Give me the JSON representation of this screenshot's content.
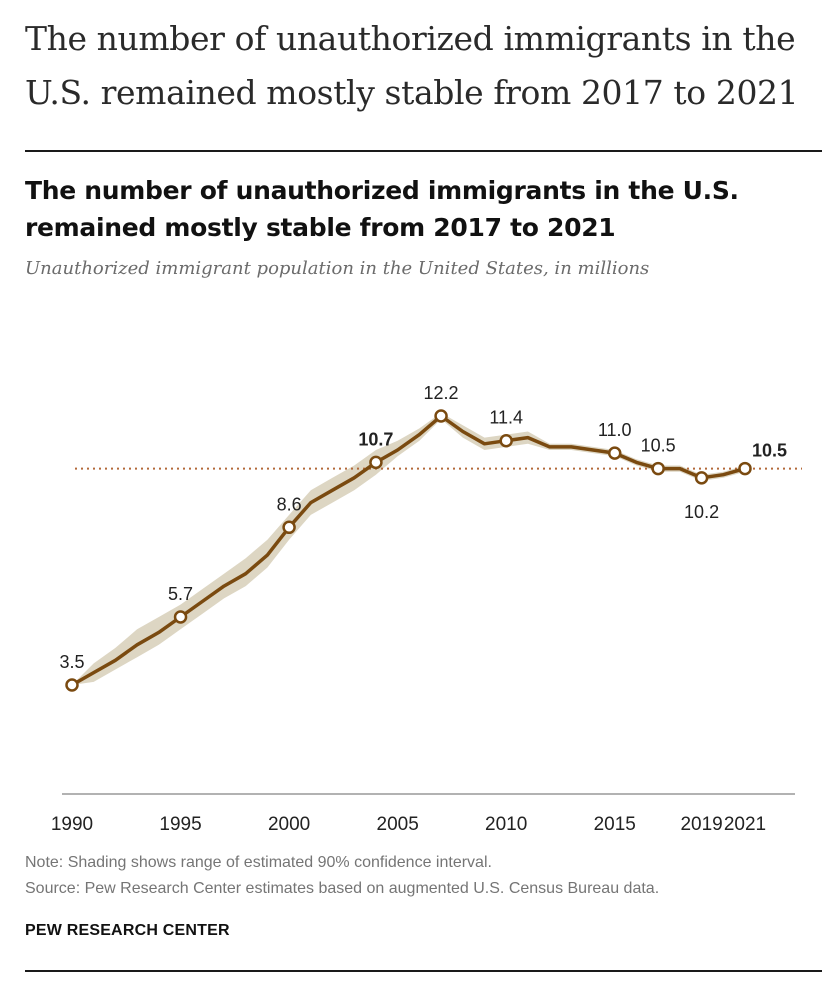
{
  "article": {
    "headline": "The number of unauthorized immigrants in the U.S. remained mostly stable from 2017 to 2021"
  },
  "chart_data": {
    "type": "line",
    "title": "The number of unauthorized immigrants in the U.S. remained mostly stable from 2017 to 2021",
    "subtitle": "Unauthorized immigrant population in the United States, in millions",
    "xlabel": "",
    "ylabel": "",
    "xlim": [
      1990,
      2021
    ],
    "ylim": [
      0,
      13
    ],
    "grid": false,
    "x_ticks": [
      1990,
      1995,
      2000,
      2005,
      2010,
      2015,
      2019,
      2021
    ],
    "x": [
      1990,
      1991,
      1992,
      1993,
      1994,
      1995,
      1996,
      1997,
      1998,
      1999,
      2000,
      2001,
      2002,
      2003,
      2004,
      2005,
      2006,
      2007,
      2008,
      2009,
      2010,
      2011,
      2012,
      2013,
      2014,
      2015,
      2016,
      2017,
      2018,
      2019,
      2020,
      2021
    ],
    "series": [
      {
        "values": [
          3.5,
          3.9,
          4.3,
          4.8,
          5.2,
          5.7,
          6.2,
          6.7,
          7.1,
          7.7,
          8.6,
          9.4,
          9.8,
          10.2,
          10.7,
          11.1,
          11.6,
          12.2,
          11.7,
          11.3,
          11.4,
          11.5,
          11.2,
          11.2,
          11.1,
          11.0,
          10.7,
          10.5,
          10.5,
          10.2,
          10.3,
          10.5
        ],
        "ci_low": [
          3.5,
          3.6,
          4.0,
          4.4,
          4.8,
          5.3,
          5.8,
          6.3,
          6.7,
          7.3,
          8.2,
          9.0,
          9.4,
          9.8,
          10.3,
          10.9,
          11.4,
          12.1,
          11.5,
          11.1,
          11.2,
          11.3,
          11.1,
          11.1,
          11.0,
          10.9,
          10.6,
          10.4,
          10.4,
          10.1,
          10.2,
          10.4
        ],
        "ci_high": [
          3.5,
          4.2,
          4.7,
          5.3,
          5.7,
          6.1,
          6.6,
          7.1,
          7.6,
          8.2,
          9.0,
          9.8,
          10.2,
          10.6,
          11.1,
          11.4,
          11.8,
          12.3,
          11.9,
          11.5,
          11.6,
          11.7,
          11.3,
          11.3,
          11.2,
          11.1,
          10.8,
          10.6,
          10.6,
          10.3,
          10.4,
          10.6
        ]
      }
    ],
    "point_labels": [
      {
        "x": 1990,
        "label": "3.5",
        "bold": false,
        "position": "above"
      },
      {
        "x": 1995,
        "label": "5.7",
        "bold": false,
        "position": "above"
      },
      {
        "x": 2000,
        "label": "8.6",
        "bold": false,
        "position": "above"
      },
      {
        "x": 2004,
        "label": "10.7",
        "bold": true,
        "position": "above"
      },
      {
        "x": 2007,
        "label": "12.2",
        "bold": false,
        "position": "above"
      },
      {
        "x": 2010,
        "label": "11.4",
        "bold": false,
        "position": "above"
      },
      {
        "x": 2015,
        "label": "11.0",
        "bold": false,
        "position": "above"
      },
      {
        "x": 2017,
        "label": "10.5",
        "bold": false,
        "position": "above"
      },
      {
        "x": 2019,
        "label": "10.2",
        "bold": false,
        "position": "below"
      },
      {
        "x": 2021,
        "label": "10.5",
        "bold": true,
        "position": "right",
        "highlight": true
      }
    ],
    "reference_line": {
      "y": 10.5,
      "style": "dotted"
    },
    "colors": {
      "line": "#7a4a10",
      "shading": "#ddd6c3",
      "reference": "#b3693a",
      "highlight_label": "#a8612a",
      "marker_fill": "#ffffff"
    }
  },
  "footer": {
    "note": "Note: Shading shows range of estimated 90% confidence interval.",
    "source": "Source: Pew Research Center estimates based on augmented U.S. Census Bureau data.",
    "brand": "PEW RESEARCH CENTER"
  }
}
